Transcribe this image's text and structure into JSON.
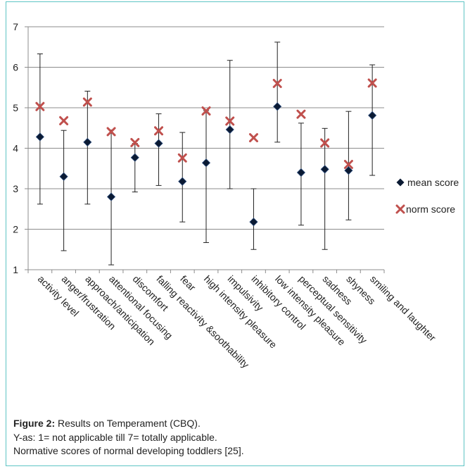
{
  "chart_data": {
    "type": "scatter",
    "categories": [
      "activity level",
      "anger/frustration",
      "approach/anticipation",
      "attentional focusing",
      "discomfort",
      "falling reactivity &soothability",
      "fear",
      "high intensity pleasure",
      "impulsivity",
      "inhibitory control",
      "low intensity pleasure",
      "perceptual sensitivity",
      "sadness",
      "shyness",
      "smiling and laughter"
    ],
    "series": [
      {
        "name": "mean score",
        "marker": "diamond",
        "color": "#0b1a33",
        "values": [
          4.28,
          3.3,
          4.15,
          2.8,
          3.77,
          4.12,
          3.18,
          3.64,
          4.46,
          2.18,
          5.03,
          3.4,
          3.48,
          3.45,
          4.81
        ],
        "error_low": [
          2.62,
          1.47,
          2.62,
          1.12,
          2.92,
          3.08,
          2.18,
          1.67,
          3.0,
          1.5,
          4.15,
          2.1,
          1.5,
          2.23,
          3.33
        ],
        "error_high": [
          6.33,
          4.44,
          5.41,
          4.45,
          4.12,
          4.85,
          4.39,
          4.93,
          6.17,
          3.0,
          6.62,
          4.62,
          4.49,
          4.91,
          6.06
        ]
      },
      {
        "name": "norm score",
        "marker": "x",
        "color": "#c0504d",
        "values": [
          5.03,
          4.68,
          5.14,
          4.41,
          4.14,
          4.43,
          3.76,
          4.92,
          4.67,
          4.26,
          5.6,
          4.84,
          4.13,
          3.6,
          5.61
        ]
      }
    ],
    "ylim": [
      1,
      7
    ],
    "yticks": [
      1,
      2,
      3,
      4,
      5,
      6,
      7
    ],
    "grid": "horizontal",
    "legend": "right",
    "title": "",
    "xlabel": "",
    "ylabel": ""
  },
  "caption": {
    "figure_label": "Figure 2:",
    "figure_title": " Results on Temperament (CBQ).",
    "line2": "Y-as: 1= not applicable till 7= totally applicable.",
    "line3": "Normative scores of normal developing toddlers [25]."
  }
}
